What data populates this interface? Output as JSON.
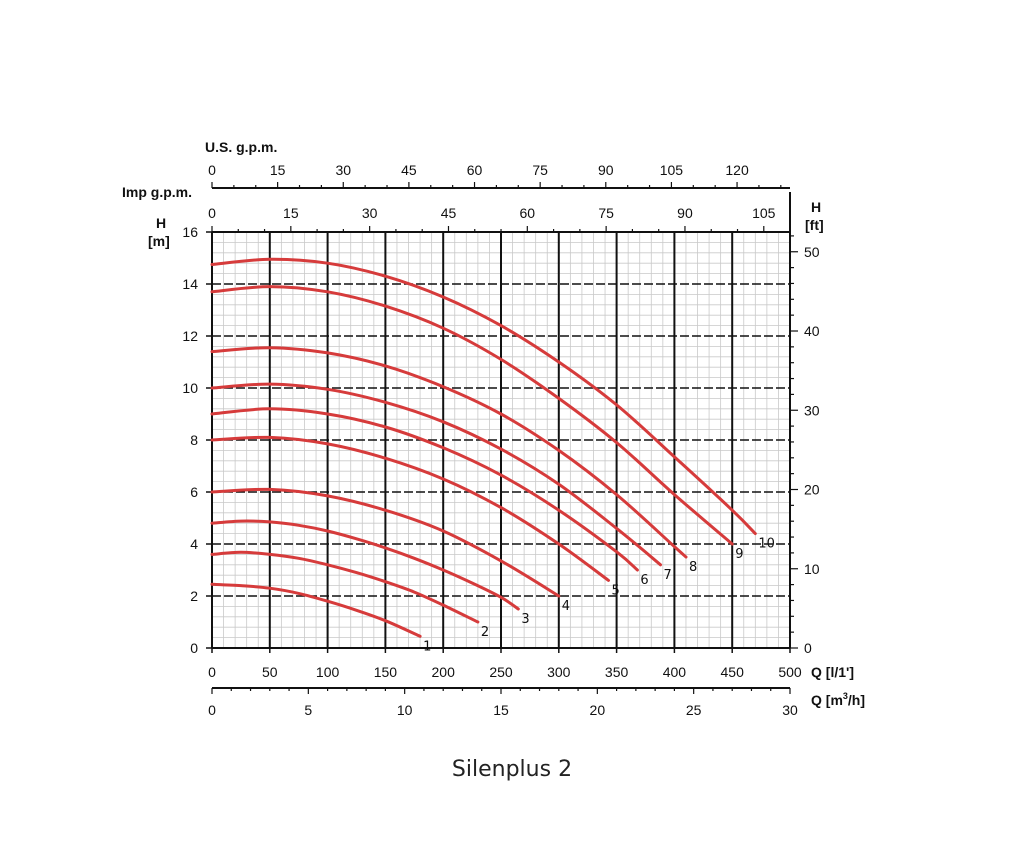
{
  "caption": "Silenplus 2",
  "chart_data": {
    "type": "line",
    "title": "",
    "x_axis": {
      "label": "Q [l/1']",
      "range": [
        0,
        500
      ],
      "ticks": [
        "0",
        "50",
        "100",
        "150",
        "200",
        "250",
        "300",
        "350",
        "400",
        "450",
        "500"
      ]
    },
    "x2_axis": {
      "label_prefix": "Q [m",
      "label_sup": "3",
      "label_suffix": "/h]",
      "range": [
        0,
        30
      ],
      "ticks": [
        "0",
        "5",
        "10",
        "15",
        "20",
        "25",
        "30"
      ]
    },
    "top_axis_us": {
      "label": "U.S. g.p.m.",
      "ticks": [
        "0",
        "15",
        "30",
        "45",
        "60",
        "75",
        "90",
        "105",
        "120"
      ]
    },
    "top_axis_imp": {
      "label": "Imp g.p.m.",
      "ticks": [
        "0",
        "15",
        "30",
        "45",
        "60",
        "75",
        "90",
        "105"
      ]
    },
    "y_axis": {
      "label_top": "H",
      "label_bottom": "[m]",
      "range": [
        0,
        16
      ],
      "ticks": [
        "0",
        "2",
        "4",
        "6",
        "8",
        "10",
        "12",
        "14",
        "16"
      ]
    },
    "y2_axis": {
      "label_top": "H",
      "label_bottom": "[ft]",
      "ticks": [
        "0",
        "10",
        "20",
        "30",
        "40",
        "50"
      ]
    },
    "grid": true,
    "series": [
      {
        "name": "1",
        "points": [
          [
            0,
            2.45
          ],
          [
            25,
            2.4
          ],
          [
            50,
            2.3
          ],
          [
            75,
            2.1
          ],
          [
            100,
            1.8
          ],
          [
            125,
            1.45
          ],
          [
            150,
            1.05
          ],
          [
            180,
            0.45
          ]
        ]
      },
      {
        "name": "2",
        "points": [
          [
            0,
            3.6
          ],
          [
            25,
            3.68
          ],
          [
            50,
            3.6
          ],
          [
            75,
            3.45
          ],
          [
            100,
            3.2
          ],
          [
            125,
            2.9
          ],
          [
            150,
            2.55
          ],
          [
            175,
            2.15
          ],
          [
            200,
            1.65
          ],
          [
            230,
            1.0
          ]
        ]
      },
      {
        "name": "3",
        "points": [
          [
            0,
            4.8
          ],
          [
            25,
            4.88
          ],
          [
            50,
            4.85
          ],
          [
            75,
            4.72
          ],
          [
            100,
            4.5
          ],
          [
            125,
            4.2
          ],
          [
            150,
            3.85
          ],
          [
            175,
            3.45
          ],
          [
            200,
            3.0
          ],
          [
            225,
            2.5
          ],
          [
            250,
            1.95
          ],
          [
            265,
            1.5
          ]
        ]
      },
      {
        "name": "4",
        "points": [
          [
            0,
            6.0
          ],
          [
            50,
            6.1
          ],
          [
            100,
            5.85
          ],
          [
            150,
            5.3
          ],
          [
            200,
            4.5
          ],
          [
            250,
            3.35
          ],
          [
            300,
            2.0
          ]
        ]
      },
      {
        "name": "5",
        "points": [
          [
            0,
            8.0
          ],
          [
            50,
            8.1
          ],
          [
            100,
            7.85
          ],
          [
            150,
            7.3
          ],
          [
            200,
            6.5
          ],
          [
            250,
            5.4
          ],
          [
            300,
            4.0
          ],
          [
            343,
            2.6
          ]
        ]
      },
      {
        "name": "6",
        "points": [
          [
            0,
            9.0
          ],
          [
            50,
            9.2
          ],
          [
            100,
            9.0
          ],
          [
            150,
            8.5
          ],
          [
            200,
            7.7
          ],
          [
            250,
            6.65
          ],
          [
            300,
            5.3
          ],
          [
            350,
            3.7
          ],
          [
            368,
            3.0
          ]
        ]
      },
      {
        "name": "7",
        "points": [
          [
            0,
            10.0
          ],
          [
            50,
            10.15
          ],
          [
            100,
            9.95
          ],
          [
            150,
            9.45
          ],
          [
            200,
            8.7
          ],
          [
            250,
            7.65
          ],
          [
            300,
            6.3
          ],
          [
            350,
            4.6
          ],
          [
            388,
            3.2
          ]
        ]
      },
      {
        "name": "8",
        "points": [
          [
            0,
            11.4
          ],
          [
            50,
            11.55
          ],
          [
            100,
            11.35
          ],
          [
            150,
            10.85
          ],
          [
            200,
            10.05
          ],
          [
            250,
            9.0
          ],
          [
            300,
            7.6
          ],
          [
            350,
            5.9
          ],
          [
            400,
            3.9
          ],
          [
            410,
            3.5
          ]
        ]
      },
      {
        "name": "9",
        "points": [
          [
            0,
            13.7
          ],
          [
            50,
            13.9
          ],
          [
            100,
            13.7
          ],
          [
            150,
            13.15
          ],
          [
            200,
            12.3
          ],
          [
            250,
            11.1
          ],
          [
            300,
            9.6
          ],
          [
            350,
            7.9
          ],
          [
            400,
            5.9
          ],
          [
            450,
            4.0
          ]
        ]
      },
      {
        "name": "10",
        "points": [
          [
            0,
            14.75
          ],
          [
            50,
            14.95
          ],
          [
            100,
            14.8
          ],
          [
            150,
            14.3
          ],
          [
            200,
            13.5
          ],
          [
            250,
            12.4
          ],
          [
            300,
            11.0
          ],
          [
            350,
            9.35
          ],
          [
            400,
            7.35
          ],
          [
            450,
            5.3
          ],
          [
            470,
            4.4
          ]
        ]
      }
    ],
    "series_color": "#d63b3b"
  }
}
